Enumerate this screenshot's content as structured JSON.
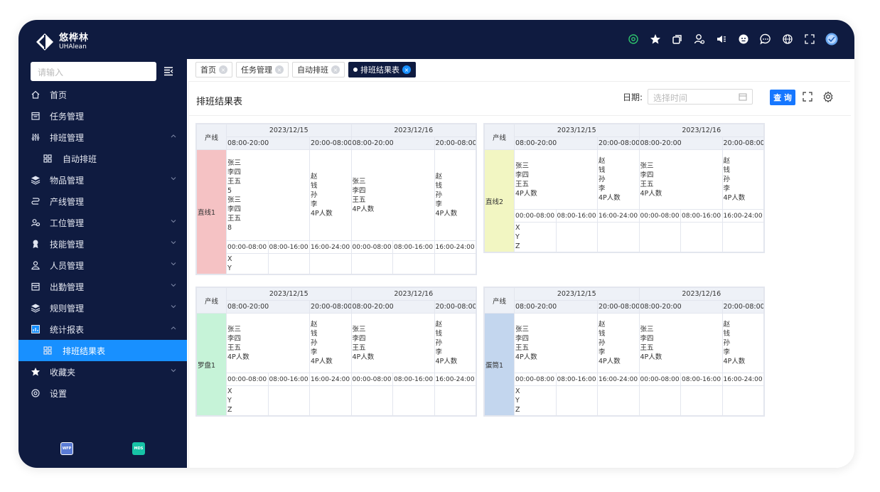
{
  "brand": {
    "name_cn": "悠桦林",
    "name_en": "UHAlean"
  },
  "search": {
    "placeholder": "请输入"
  },
  "menu": [
    {
      "label": "首页",
      "icon": "home-icon"
    },
    {
      "label": "任务管理",
      "icon": "task-icon"
    },
    {
      "label": "排班管理",
      "icon": "sliders-icon",
      "expanded": true
    },
    {
      "label": "自动排班",
      "icon": "grid-icon",
      "sub": true
    },
    {
      "label": "物品管理",
      "icon": "layers-icon"
    },
    {
      "label": "产线管理",
      "icon": "route-icon"
    },
    {
      "label": "工位管理",
      "icon": "users-icon"
    },
    {
      "label": "技能管理",
      "icon": "medal-icon"
    },
    {
      "label": "人员管理",
      "icon": "user-icon"
    },
    {
      "label": "出勤管理",
      "icon": "calendar-icon"
    },
    {
      "label": "规则管理",
      "icon": "stack-icon"
    },
    {
      "label": "统计报表",
      "icon": "report-icon",
      "expanded": true
    },
    {
      "label": "排班结果表",
      "icon": "grid-icon",
      "sub": true,
      "active": true
    },
    {
      "label": "收藏夹",
      "icon": "star-icon"
    },
    {
      "label": "设置",
      "icon": "gear-icon"
    }
  ],
  "bottom_apps": [
    "WFP",
    "MDS"
  ],
  "tabs": [
    {
      "label": "首页"
    },
    {
      "label": "任务管理"
    },
    {
      "label": "自动排班"
    },
    {
      "label": "排班结果表",
      "current": true
    }
  ],
  "panel": {
    "title": "排班结果表",
    "date_label": "日期:",
    "date_placeholder": "选择时间",
    "query_label": "查 询"
  },
  "schedule": {
    "line_header": "产线",
    "dates": [
      "2023/12/15",
      "2023/12/16"
    ],
    "shifts": [
      "08:00-20:00",
      "20:00-08:00"
    ],
    "times": [
      "00:00-08:00",
      "08:00-16:00",
      "16:00-24:00",
      "00:00-08:00",
      "08:00-16:00",
      "16:00-24:00"
    ],
    "tables": [
      {
        "line": "直线1",
        "color": "#f5c2c4",
        "d1_a": "张三\n李四\n王五\n5\n张三\n李四\n王五\n8",
        "d1_b": "赵\n钱\n孙\n李\n4P人数",
        "d2_a": "张三\n李四\n王五\n4P人数",
        "d2_b": "赵\n钱\n孙\n李\n4P人数",
        "workers": "X\nY"
      },
      {
        "line": "直线2",
        "color": "#f2f6c2",
        "d1_a": "张三\n李四\n王五\n4P人数",
        "d1_b": "赵\n钱\n孙\n李\n4P人数",
        "d2_a": "张三\n李四\n王五\n4P人数",
        "d2_b": "赵\n钱\n孙\n李\n4P人数",
        "workers": "X\nY\nZ"
      },
      {
        "line": "罗盘1",
        "color": "#c6f3d8",
        "d1_a": "张三\n李四\n王五\n4P人数",
        "d1_b": "赵\n钱\n孙\n李\n4P人数",
        "d2_a": "张三\n李四\n王五\n4P人数",
        "d2_b": "赵\n钱\n孙\n李\n4P人数",
        "workers": "X\nY\nZ"
      },
      {
        "line": "蛋筒1",
        "color": "#c3d6ee",
        "d1_a": "张三\n李四\n王五\n4P人数",
        "d1_b": "赵\n钱\n孙\n李\n4P人数",
        "d2_a": "张三\n李四\n王五\n4P人数",
        "d2_b": "赵\n钱\n孙\n李\n4P人数",
        "workers": "X\nY\nZ"
      }
    ]
  }
}
